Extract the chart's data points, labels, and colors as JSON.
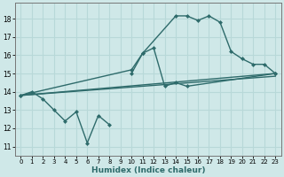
{
  "title": "",
  "xlabel": "Humidex (Indice chaleur)",
  "ylabel": "",
  "background_color": "#cfe8e8",
  "grid_color": "#b8d8d8",
  "line_color": "#2e6b6b",
  "xlim": [
    -0.5,
    23.5
  ],
  "ylim": [
    10.5,
    18.85
  ],
  "xticks": [
    0,
    1,
    2,
    3,
    4,
    5,
    6,
    7,
    8,
    9,
    10,
    11,
    12,
    13,
    14,
    15,
    16,
    17,
    18,
    19,
    20,
    21,
    22,
    23
  ],
  "yticks": [
    11,
    12,
    13,
    14,
    15,
    16,
    17,
    18
  ],
  "line1_x": [
    0,
    1,
    2,
    3,
    4,
    5,
    6,
    7,
    8,
    10,
    11,
    12,
    13,
    14,
    15,
    23
  ],
  "line1_y": [
    13.8,
    14.0,
    13.6,
    13.0,
    12.4,
    12.9,
    11.2,
    12.7,
    12.2,
    15.0,
    16.1,
    16.4,
    14.3,
    14.5,
    14.3,
    15.0
  ],
  "line1_break_after": 8,
  "line2_x": [
    0,
    23
  ],
  "line2_y": [
    13.8,
    15.0
  ],
  "line3_x": [
    0,
    10,
    11,
    14,
    15,
    16,
    17,
    18,
    19,
    20,
    21,
    22,
    23
  ],
  "line3_y": [
    13.8,
    15.2,
    16.1,
    18.15,
    18.15,
    17.9,
    18.15,
    17.8,
    16.2,
    15.8,
    15.5,
    15.5,
    15.0
  ],
  "line4_x": [
    0,
    23
  ],
  "line4_y": [
    13.8,
    14.85
  ],
  "markersize": 2.5,
  "linewidth": 1.0
}
